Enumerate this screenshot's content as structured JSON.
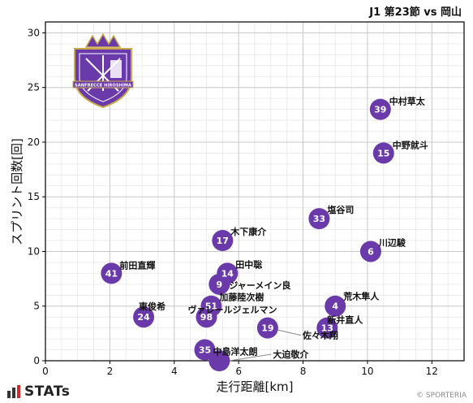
{
  "header": {
    "match_title": "J1 第23節 vs 岡山"
  },
  "brand": {
    "logo_text": "STATs",
    "credit": "© SPORTERIA"
  },
  "emblem": {
    "text": "SANFRECCE HIROSHIMA"
  },
  "colors": {
    "marker": "#6a3aab",
    "grid_major": "#c8c8c8",
    "grid_minor": "#e8e8e8"
  },
  "chart_data": {
    "type": "scatter",
    "title": "",
    "xlabel": "走行距離[km]",
    "ylabel": "スプリント回数[回]",
    "xlim": [
      0,
      13
    ],
    "ylim": [
      0,
      31
    ],
    "xticks": [
      0,
      2,
      4,
      6,
      8,
      10,
      12
    ],
    "yticks": [
      0,
      5,
      10,
      15,
      20,
      25,
      30
    ],
    "grid": true,
    "points": [
      {
        "number": "39",
        "name": "中村草太",
        "x": 10.4,
        "y": 23
      },
      {
        "number": "15",
        "name": "中野就斗",
        "x": 10.5,
        "y": 19
      },
      {
        "number": "33",
        "name": "塩谷司",
        "x": 8.5,
        "y": 13
      },
      {
        "number": "6",
        "name": "川辺駿",
        "x": 10.1,
        "y": 10
      },
      {
        "number": "17",
        "name": "木下康介",
        "x": 5.5,
        "y": 11
      },
      {
        "number": "41",
        "name": "前田直輝",
        "x": 2.05,
        "y": 8
      },
      {
        "number": "14",
        "name": "田中聡",
        "x": 5.65,
        "y": 8
      },
      {
        "number": "9",
        "name": "ジャーメイン良",
        "x": 5.4,
        "y": 7
      },
      {
        "number": "51",
        "name": "加藤陸次樹",
        "x": 5.15,
        "y": 5
      },
      {
        "number": "4",
        "name": "荒木隼人",
        "x": 9.0,
        "y": 5
      },
      {
        "number": "24",
        "name": "東俊希",
        "x": 3.05,
        "y": 4
      },
      {
        "number": "98",
        "name": "ヴァレールジェルマン",
        "x": 5.0,
        "y": 4
      },
      {
        "number": "19",
        "name": "佐々木翔",
        "x": 6.9,
        "y": 3
      },
      {
        "number": "13",
        "name": "新井直人",
        "x": 8.75,
        "y": 3
      },
      {
        "number": "35",
        "name": "中島洋太朗",
        "x": 4.95,
        "y": 1
      },
      {
        "number": "",
        "name": "大迫敬介",
        "x": 5.4,
        "y": 0
      }
    ]
  }
}
